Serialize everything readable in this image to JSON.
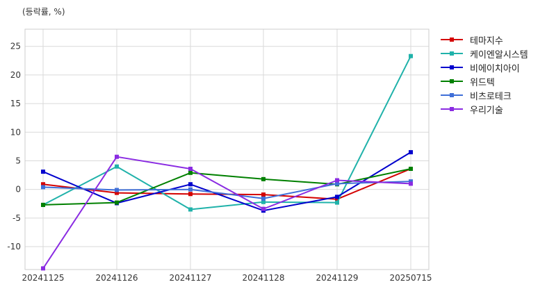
{
  "unit_label": "(등락률, %)",
  "chart_data": {
    "type": "line",
    "categories": [
      "20241125",
      "20241126",
      "20241127",
      "20241128",
      "20241129",
      "20250715"
    ],
    "ylim": [
      -14,
      28
    ],
    "yticks": [
      -10,
      -5,
      0,
      5,
      10,
      15,
      20,
      25
    ],
    "grid": true,
    "legend_position": "right",
    "series": [
      {
        "name": "테마지수",
        "color": "#d40000",
        "values": [
          0.9,
          -0.6,
          -0.8,
          -0.9,
          -1.7,
          3.6
        ]
      },
      {
        "name": "케이엔알시스템",
        "color": "#20b2aa",
        "values": [
          -2.7,
          4.0,
          -3.5,
          -2.2,
          -2.3,
          23.3
        ]
      },
      {
        "name": "비에이치아이",
        "color": "#0000cd",
        "values": [
          3.1,
          -2.4,
          0.9,
          -3.7,
          -1.3,
          6.5
        ]
      },
      {
        "name": "위드텍",
        "color": "#008000",
        "values": [
          -2.7,
          -2.3,
          2.9,
          1.8,
          0.9,
          3.6
        ]
      },
      {
        "name": "비츠로테크",
        "color": "#3f6fd8",
        "values": [
          0.4,
          -0.1,
          0.0,
          -1.6,
          1.0,
          1.4
        ]
      },
      {
        "name": "우리기술",
        "color": "#8a2be2",
        "values": [
          -13.8,
          5.7,
          3.6,
          -3.4,
          1.6,
          1.0
        ]
      }
    ]
  }
}
